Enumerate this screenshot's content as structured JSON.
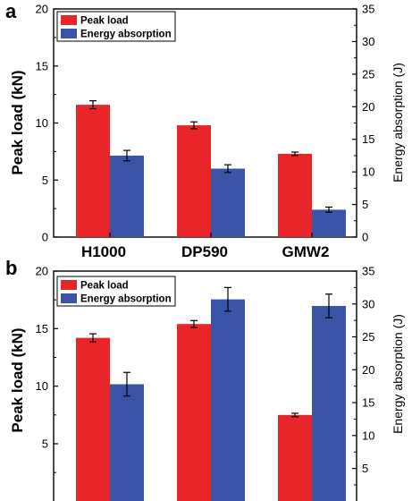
{
  "colors": {
    "peak": "#e8262a",
    "energy": "#3a55a8",
    "axis": "#000000"
  },
  "legend": {
    "peak": "Peak load",
    "energy": "Energy absorption"
  },
  "chart_data": [
    {
      "panel": "a",
      "type": "bar",
      "categories": [
        "H1000",
        "DP590",
        "GMW2"
      ],
      "series": [
        {
          "name": "Peak load",
          "axis": "left",
          "values": [
            11.6,
            9.8,
            7.3
          ],
          "errors": [
            0.35,
            0.3,
            0.15
          ]
        },
        {
          "name": "Energy absorption",
          "axis": "right",
          "values": [
            12.5,
            10.5,
            4.2
          ],
          "errors": [
            0.8,
            0.6,
            0.4
          ]
        }
      ],
      "ylabel": "Peak load (kN)",
      "ylabel_right": "Energy absorption (J)",
      "ylim": [
        0,
        20
      ],
      "ylim_right": [
        0,
        35
      ],
      "yticks": [
        "0",
        "5",
        "10",
        "15",
        "20"
      ],
      "yticks_right": [
        "0",
        "5",
        "10",
        "15",
        "20",
        "25",
        "30",
        "35"
      ],
      "legend_position": "top-left"
    },
    {
      "panel": "b",
      "type": "bar",
      "categories": [
        "",
        "",
        ""
      ],
      "series": [
        {
          "name": "Peak load",
          "axis": "left",
          "values": [
            14.2,
            15.4,
            7.5
          ],
          "errors": [
            0.35,
            0.3,
            0.15
          ]
        },
        {
          "name": "Energy absorption",
          "axis": "right",
          "values": [
            17.8,
            30.7,
            29.7
          ],
          "errors": [
            1.8,
            1.8,
            1.8
          ]
        }
      ],
      "ylabel": "Peak load (kN)",
      "ylabel_right": "Energy absorption (J)",
      "ylim": [
        0,
        20
      ],
      "ylim_right": [
        0,
        35
      ],
      "yticks": [
        "5",
        "10",
        "15",
        "20"
      ],
      "yticks_right": [
        "5",
        "10",
        "15",
        "20",
        "25",
        "30",
        "35"
      ],
      "legend_position": "top-left"
    }
  ]
}
